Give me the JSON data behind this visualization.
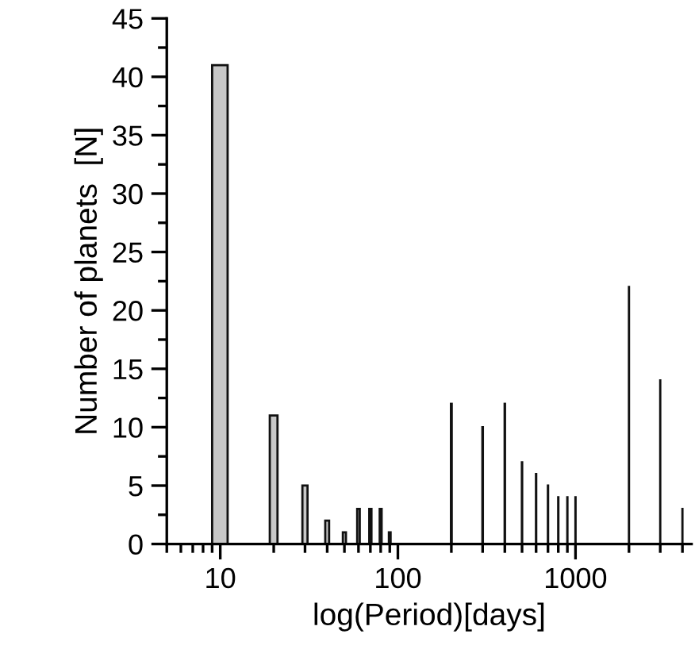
{
  "chart_data": {
    "type": "bar",
    "xlabel": "log(Period)[days]",
    "ylabel": "Number of planets  [N]",
    "x": [
      10,
      20,
      30,
      40,
      50,
      60,
      70,
      80,
      90,
      200,
      300,
      400,
      500,
      600,
      700,
      800,
      900,
      1000,
      2000,
      3000,
      4000
    ],
    "values": [
      41,
      11,
      5,
      2,
      1,
      3,
      3,
      3,
      1,
      12,
      10,
      12,
      7,
      6,
      5,
      4,
      4,
      4,
      22,
      14,
      3
    ],
    "color": "#c8c8c8",
    "log": "x",
    "xlim": [
      5,
      4500
    ],
    "xticks": [
      10,
      100,
      1000
    ],
    "ylim": [
      0,
      45
    ],
    "yticks": [
      0,
      5,
      10,
      15,
      20,
      25,
      30,
      35,
      40,
      45
    ],
    "grid": false
  }
}
